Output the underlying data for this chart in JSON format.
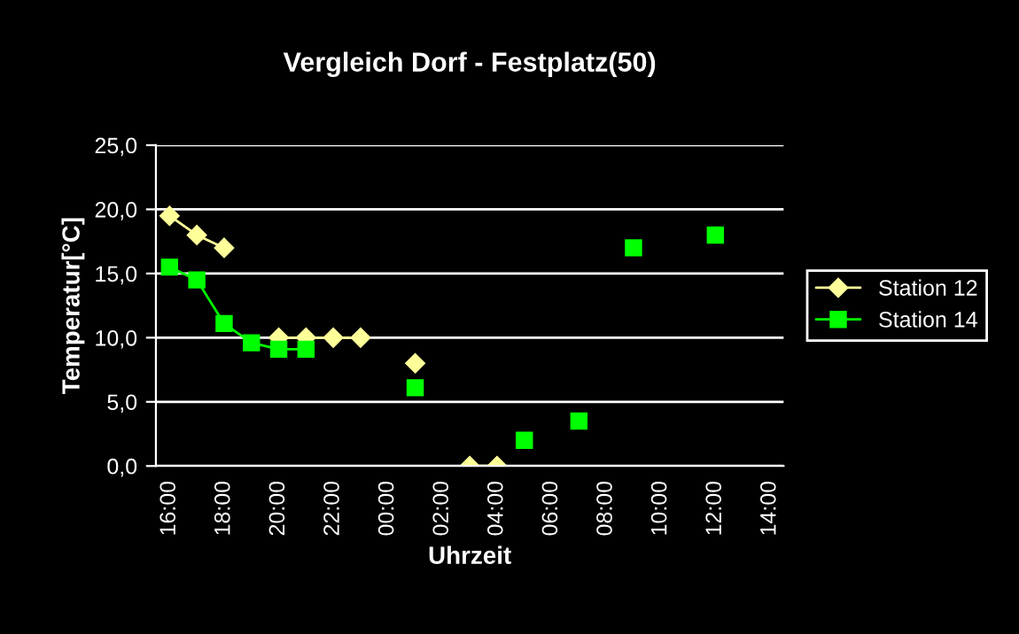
{
  "chart_data": {
    "type": "line",
    "title": "Vergleich Dorf - Festplatz(50)",
    "xlabel": "Uhrzeit",
    "ylabel": "Temperatur[°C]",
    "categories": [
      "16:00",
      null,
      "18:00",
      null,
      "20:00",
      null,
      "22:00",
      null,
      "00:00",
      null,
      "02:00",
      null,
      "04:00",
      null,
      "06:00",
      null,
      "08:00",
      null,
      "10:00",
      null,
      "12:00",
      null,
      "14:00"
    ],
    "series": [
      {
        "name": "Station 12",
        "color": "#ffff99",
        "marker": "diamond",
        "values": [
          19.5,
          18.0,
          17.0,
          null,
          10.0,
          10.0,
          10.0,
          10.0,
          null,
          8.0,
          null,
          0.0,
          0.0,
          null,
          null,
          null,
          null,
          null,
          null,
          null,
          null,
          null,
          null
        ]
      },
      {
        "name": "Station 14",
        "color": "#00ff00",
        "marker": "square",
        "values": [
          15.5,
          14.5,
          11.1,
          9.6,
          9.1,
          9.1,
          null,
          null,
          null,
          6.1,
          null,
          null,
          null,
          2.0,
          null,
          3.5,
          null,
          17.0,
          null,
          null,
          18.0,
          null,
          null
        ]
      }
    ],
    "ylim": [
      0,
      25
    ],
    "yticks": [
      {
        "value": 0,
        "label": "0,0"
      },
      {
        "value": 5,
        "label": "5,0"
      },
      {
        "value": 10,
        "label": "10,0"
      },
      {
        "value": 15,
        "label": "15,0"
      },
      {
        "value": 20,
        "label": "20,0"
      },
      {
        "value": 25,
        "label": "25,0"
      }
    ],
    "grid": "y",
    "legend": "right",
    "line_style": "solid"
  }
}
